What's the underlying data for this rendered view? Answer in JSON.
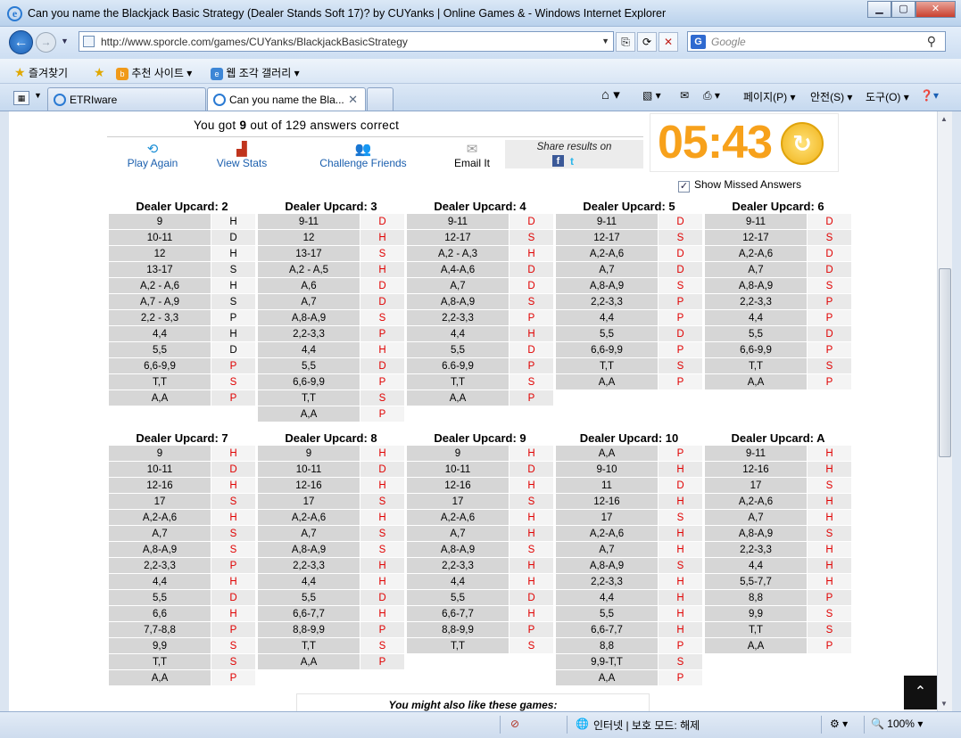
{
  "window": {
    "title": "Can you name the Blackjack Basic Strategy (Dealer Stands Soft 17)? by CUYanks | Online Games &  - Windows Internet Explorer"
  },
  "address": {
    "url": "http://www.sporcle.com/games/CUYanks/BlackjackBasicStrategy"
  },
  "search": {
    "placeholder": "Google"
  },
  "favorites": {
    "label": "즐겨찾기",
    "items": [
      "추천 사이트 ▾",
      "웹 조각 갤러리 ▾"
    ]
  },
  "tabs": [
    {
      "label": "ETRIware"
    },
    {
      "label": "Can you name the Bla..."
    }
  ],
  "commandbar": {
    "page": "페이지(P) ▾",
    "safety": "안전(S) ▾",
    "tools": "도구(O) ▾"
  },
  "result": {
    "prefix": "You got ",
    "score": "9",
    "suffix": " out of 129 answers correct"
  },
  "actions": {
    "play_again": "Play Again",
    "view_stats": "View Stats",
    "challenge": "Challenge Friends",
    "email": "Email It",
    "share": "Share results on"
  },
  "timer": "05:43",
  "show_missed": "Show Missed Answers",
  "tables": [
    {
      "title": "Dealer Upcard: 2",
      "rows": [
        [
          "9",
          "H",
          0
        ],
        [
          "10-11",
          "D",
          0
        ],
        [
          "12",
          "H",
          0
        ],
        [
          "13-17",
          "S",
          0
        ],
        [
          "A,2 - A,6",
          "H",
          0
        ],
        [
          "A,7 - A,9",
          "S",
          0
        ],
        [
          "2,2 - 3,3",
          "P",
          0
        ],
        [
          "4,4",
          "H",
          0
        ],
        [
          "5,5",
          "D",
          0
        ],
        [
          "6,6-9,9",
          "P",
          1
        ],
        [
          "T,T",
          "S",
          1
        ],
        [
          "A,A",
          "P",
          1
        ]
      ]
    },
    {
      "title": "Dealer Upcard: 3",
      "rows": [
        [
          "9-11",
          "D",
          1
        ],
        [
          "12",
          "H",
          1
        ],
        [
          "13-17",
          "S",
          1
        ],
        [
          "A,2 - A,5",
          "H",
          1
        ],
        [
          "A,6",
          "D",
          1
        ],
        [
          "A,7",
          "D",
          1
        ],
        [
          "A,8-A,9",
          "S",
          1
        ],
        [
          "2,2-3,3",
          "P",
          1
        ],
        [
          "4,4",
          "H",
          1
        ],
        [
          "5,5",
          "D",
          1
        ],
        [
          "6,6-9,9",
          "P",
          1
        ],
        [
          "T,T",
          "S",
          1
        ],
        [
          "A,A",
          "P",
          1
        ]
      ]
    },
    {
      "title": "Dealer Upcard: 4",
      "rows": [
        [
          "9-11",
          "D",
          1
        ],
        [
          "12-17",
          "S",
          1
        ],
        [
          "A,2 - A,3",
          "H",
          1
        ],
        [
          "A,4-A,6",
          "D",
          1
        ],
        [
          "A,7",
          "D",
          1
        ],
        [
          "A,8-A,9",
          "S",
          1
        ],
        [
          "2,2-3,3",
          "P",
          1
        ],
        [
          "4,4",
          "H",
          1
        ],
        [
          "5,5",
          "D",
          1
        ],
        [
          "6.6-9,9",
          "P",
          1
        ],
        [
          "T,T",
          "S",
          1
        ],
        [
          "A,A",
          "P",
          1
        ]
      ]
    },
    {
      "title": "Dealer Upcard: 5",
      "rows": [
        [
          "9-11",
          "D",
          1
        ],
        [
          "12-17",
          "S",
          1
        ],
        [
          "A,2-A,6",
          "D",
          1
        ],
        [
          "A,7",
          "D",
          1
        ],
        [
          "A,8-A,9",
          "S",
          1
        ],
        [
          "2,2-3,3",
          "P",
          1
        ],
        [
          "4,4",
          "P",
          1
        ],
        [
          "5,5",
          "D",
          1
        ],
        [
          "6,6-9,9",
          "P",
          1
        ],
        [
          "T,T",
          "S",
          1
        ],
        [
          "A,A",
          "P",
          1
        ]
      ]
    },
    {
      "title": "Dealer Upcard: 6",
      "rows": [
        [
          "9-11",
          "D",
          1
        ],
        [
          "12-17",
          "S",
          1
        ],
        [
          "A,2-A,6",
          "D",
          1
        ],
        [
          "A,7",
          "D",
          1
        ],
        [
          "A,8-A,9",
          "S",
          1
        ],
        [
          "2,2-3,3",
          "P",
          1
        ],
        [
          "4,4",
          "P",
          1
        ],
        [
          "5,5",
          "D",
          1
        ],
        [
          "6,6-9,9",
          "P",
          1
        ],
        [
          "T,T",
          "S",
          1
        ],
        [
          "A,A",
          "P",
          1
        ]
      ]
    },
    {
      "title": "Dealer Upcard: 7",
      "rows": [
        [
          "9",
          "H",
          1
        ],
        [
          "10-11",
          "D",
          1
        ],
        [
          "12-16",
          "H",
          1
        ],
        [
          "17",
          "S",
          1
        ],
        [
          "A,2-A,6",
          "H",
          1
        ],
        [
          "A,7",
          "S",
          1
        ],
        [
          "A,8-A,9",
          "S",
          1
        ],
        [
          "2,2-3,3",
          "P",
          1
        ],
        [
          "4,4",
          "H",
          1
        ],
        [
          "5,5",
          "D",
          1
        ],
        [
          "6,6",
          "H",
          1
        ],
        [
          "7,7-8,8",
          "P",
          1
        ],
        [
          "9,9",
          "S",
          1
        ],
        [
          "T,T",
          "S",
          1
        ],
        [
          "A,A",
          "P",
          1
        ]
      ]
    },
    {
      "title": "Dealer Upcard: 8",
      "rows": [
        [
          "9",
          "H",
          1
        ],
        [
          "10-11",
          "D",
          1
        ],
        [
          "12-16",
          "H",
          1
        ],
        [
          "17",
          "S",
          1
        ],
        [
          "A,2-A,6",
          "H",
          1
        ],
        [
          "A,7",
          "S",
          1
        ],
        [
          "A,8-A,9",
          "S",
          1
        ],
        [
          "2,2-3,3",
          "H",
          1
        ],
        [
          "4,4",
          "H",
          1
        ],
        [
          "5,5",
          "D",
          1
        ],
        [
          "6,6-7,7",
          "H",
          1
        ],
        [
          "8,8-9,9",
          "P",
          1
        ],
        [
          "T,T",
          "S",
          1
        ],
        [
          "A,A",
          "P",
          1
        ]
      ]
    },
    {
      "title": "Dealer Upcard: 9",
      "rows": [
        [
          "9",
          "H",
          1
        ],
        [
          "10-11",
          "D",
          1
        ],
        [
          "12-16",
          "H",
          1
        ],
        [
          "17",
          "S",
          1
        ],
        [
          "A,2-A,6",
          "H",
          1
        ],
        [
          "A,7",
          "H",
          1
        ],
        [
          "A,8-A,9",
          "S",
          1
        ],
        [
          "2,2-3,3",
          "H",
          1
        ],
        [
          "4,4",
          "H",
          1
        ],
        [
          "5,5",
          "D",
          1
        ],
        [
          "6,6-7,7",
          "H",
          1
        ],
        [
          "8,8-9,9",
          "P",
          1
        ],
        [
          "T,T",
          "S",
          1
        ]
      ]
    },
    {
      "title": "Dealer Upcard: 10",
      "rows": [
        [
          "A,A",
          "P",
          1
        ],
        [
          "9-10",
          "H",
          1
        ],
        [
          "11",
          "D",
          1
        ],
        [
          "12-16",
          "H",
          1
        ],
        [
          "17",
          "S",
          1
        ],
        [
          "A,2-A,6",
          "H",
          1
        ],
        [
          "A,7",
          "H",
          1
        ],
        [
          "A,8-A,9",
          "S",
          1
        ],
        [
          "2,2-3,3",
          "H",
          1
        ],
        [
          "4,4",
          "H",
          1
        ],
        [
          "5,5",
          "H",
          1
        ],
        [
          "6,6-7,7",
          "H",
          1
        ],
        [
          "8,8",
          "P",
          1
        ],
        [
          "9,9-T,T",
          "S",
          1
        ],
        [
          "A,A",
          "P",
          1
        ]
      ]
    },
    {
      "title": "Dealer Upcard: A",
      "rows": [
        [
          "9-11",
          "H",
          1
        ],
        [
          "12-16",
          "H",
          1
        ],
        [
          "17",
          "S",
          1
        ],
        [
          "A,2-A,6",
          "H",
          1
        ],
        [
          "A,7",
          "H",
          1
        ],
        [
          "A,8-A,9",
          "S",
          1
        ],
        [
          "2,2-3,3",
          "H",
          1
        ],
        [
          "4,4",
          "H",
          1
        ],
        [
          "5,5-7,7",
          "H",
          1
        ],
        [
          "8,8",
          "P",
          1
        ],
        [
          "9,9",
          "S",
          1
        ],
        [
          "T,T",
          "S",
          1
        ],
        [
          "A,A",
          "P",
          1
        ]
      ]
    }
  ],
  "also_like": "You might also like these games:",
  "status": {
    "zone": "인터넷 | 보호 모드: 해제",
    "zoom": "100%"
  },
  "colors": {
    "missed": "#e00000",
    "timer": "#f7a11b",
    "link": "#1b5fae"
  }
}
